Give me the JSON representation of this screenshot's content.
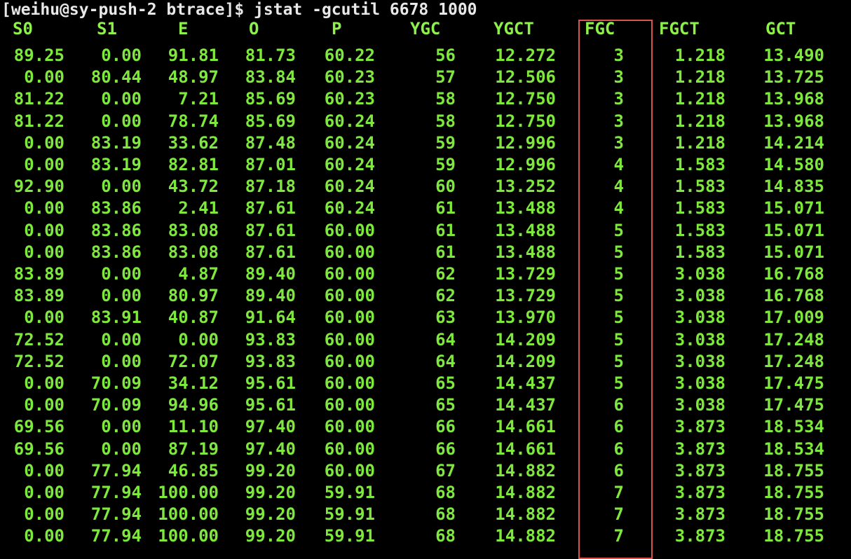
{
  "terminal": {
    "prompt": "[weihu@sy-push-2 btrace]$ jstat -gcutil 6678 1000",
    "columns": [
      "S0",
      "S1",
      "E",
      "O",
      "P",
      "YGC",
      "YGCT",
      "FGC",
      "FGCT",
      "GCT"
    ],
    "rows": [
      [
        "89.25",
        "0.00",
        "91.81",
        "81.73",
        "60.22",
        "56",
        "12.272",
        "3",
        "1.218",
        "13.490"
      ],
      [
        "0.00",
        "80.44",
        "48.97",
        "83.84",
        "60.23",
        "57",
        "12.506",
        "3",
        "1.218",
        "13.725"
      ],
      [
        "81.22",
        "0.00",
        "7.21",
        "85.69",
        "60.23",
        "58",
        "12.750",
        "3",
        "1.218",
        "13.968"
      ],
      [
        "81.22",
        "0.00",
        "78.74",
        "85.69",
        "60.24",
        "58",
        "12.750",
        "3",
        "1.218",
        "13.968"
      ],
      [
        "0.00",
        "83.19",
        "33.62",
        "87.48",
        "60.24",
        "59",
        "12.996",
        "3",
        "1.218",
        "14.214"
      ],
      [
        "0.00",
        "83.19",
        "82.81",
        "87.01",
        "60.24",
        "59",
        "12.996",
        "4",
        "1.583",
        "14.580"
      ],
      [
        "92.90",
        "0.00",
        "43.72",
        "87.18",
        "60.24",
        "60",
        "13.252",
        "4",
        "1.583",
        "14.835"
      ],
      [
        "0.00",
        "83.86",
        "2.41",
        "87.61",
        "60.24",
        "61",
        "13.488",
        "4",
        "1.583",
        "15.071"
      ],
      [
        "0.00",
        "83.86",
        "83.08",
        "87.61",
        "60.00",
        "61",
        "13.488",
        "5",
        "1.583",
        "15.071"
      ],
      [
        "0.00",
        "83.86",
        "83.08",
        "87.61",
        "60.00",
        "61",
        "13.488",
        "5",
        "1.583",
        "15.071"
      ],
      [
        "83.89",
        "0.00",
        "4.87",
        "89.40",
        "60.00",
        "62",
        "13.729",
        "5",
        "3.038",
        "16.768"
      ],
      [
        "83.89",
        "0.00",
        "80.97",
        "89.40",
        "60.00",
        "62",
        "13.729",
        "5",
        "3.038",
        "16.768"
      ],
      [
        "0.00",
        "83.91",
        "40.87",
        "91.64",
        "60.00",
        "63",
        "13.970",
        "5",
        "3.038",
        "17.009"
      ],
      [
        "72.52",
        "0.00",
        "0.00",
        "93.83",
        "60.00",
        "64",
        "14.209",
        "5",
        "3.038",
        "17.248"
      ],
      [
        "72.52",
        "0.00",
        "72.07",
        "93.83",
        "60.00",
        "64",
        "14.209",
        "5",
        "3.038",
        "17.248"
      ],
      [
        "0.00",
        "70.09",
        "34.12",
        "95.61",
        "60.00",
        "65",
        "14.437",
        "5",
        "3.038",
        "17.475"
      ],
      [
        "0.00",
        "70.09",
        "94.96",
        "95.61",
        "60.00",
        "65",
        "14.437",
        "6",
        "3.038",
        "17.475"
      ],
      [
        "69.56",
        "0.00",
        "11.10",
        "97.40",
        "60.00",
        "66",
        "14.661",
        "6",
        "3.873",
        "18.534"
      ],
      [
        "69.56",
        "0.00",
        "87.19",
        "97.40",
        "60.00",
        "66",
        "14.661",
        "6",
        "3.873",
        "18.534"
      ],
      [
        "0.00",
        "77.94",
        "46.85",
        "99.20",
        "60.00",
        "67",
        "14.882",
        "6",
        "3.873",
        "18.755"
      ],
      [
        "0.00",
        "77.94",
        "100.00",
        "99.20",
        "59.91",
        "68",
        "14.882",
        "7",
        "3.873",
        "18.755"
      ],
      [
        "0.00",
        "77.94",
        "100.00",
        "99.20",
        "59.91",
        "68",
        "14.882",
        "7",
        "3.873",
        "18.755"
      ],
      [
        "0.00",
        "77.94",
        "100.00",
        "99.20",
        "59.91",
        "68",
        "14.882",
        "7",
        "3.873",
        "18.755"
      ]
    ]
  },
  "colors": {
    "background": "#000000",
    "text": "#7ee83c",
    "highlight_box": "#d9534f"
  }
}
